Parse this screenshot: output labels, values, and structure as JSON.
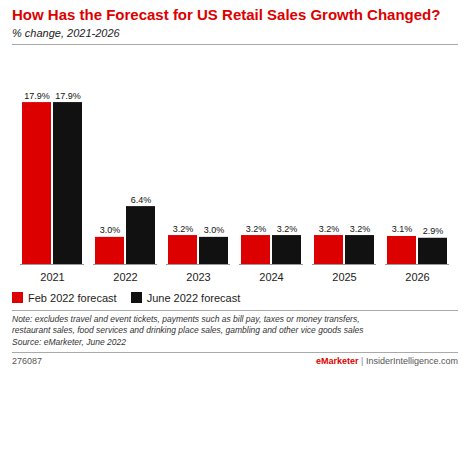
{
  "chart_data": {
    "type": "bar",
    "title": "How Has the Forecast for US Retail Sales Growth Changed?",
    "subtitle": "% change, 2021-2026",
    "categories": [
      "2021",
      "2022",
      "2023",
      "2024",
      "2025",
      "2026"
    ],
    "series": [
      {
        "name": "Feb 2022 forecast",
        "color": "#dd0000",
        "values": [
          17.9,
          3.0,
          3.2,
          3.2,
          3.2,
          3.1
        ],
        "value_labels": [
          "17.9%",
          "3.0%",
          "3.2%",
          "3.2%",
          "3.2%",
          "3.1%"
        ]
      },
      {
        "name": "June 2022 forecast",
        "color": "#111111",
        "values": [
          17.9,
          6.4,
          3.0,
          3.2,
          3.2,
          2.9
        ],
        "value_labels": [
          "17.9%",
          "6.4%",
          "3.0%",
          "3.2%",
          "3.2%",
          "2.9%"
        ]
      }
    ],
    "ylim": [
      0,
      22
    ],
    "tick_labels": "x",
    "data_labels": true,
    "legend": "bottom",
    "annotations": [
      "Note: excludes travel and event tickets, payments such as bill pay, taxes or money transfers,",
      "restaurant sales, food services and drinking place sales, gambling and other vice goods sales",
      "Source: eMarketer, June 2022",
      "276087",
      "eMarketer",
      " | ",
      "InsiderIntelligence.com"
    ]
  }
}
